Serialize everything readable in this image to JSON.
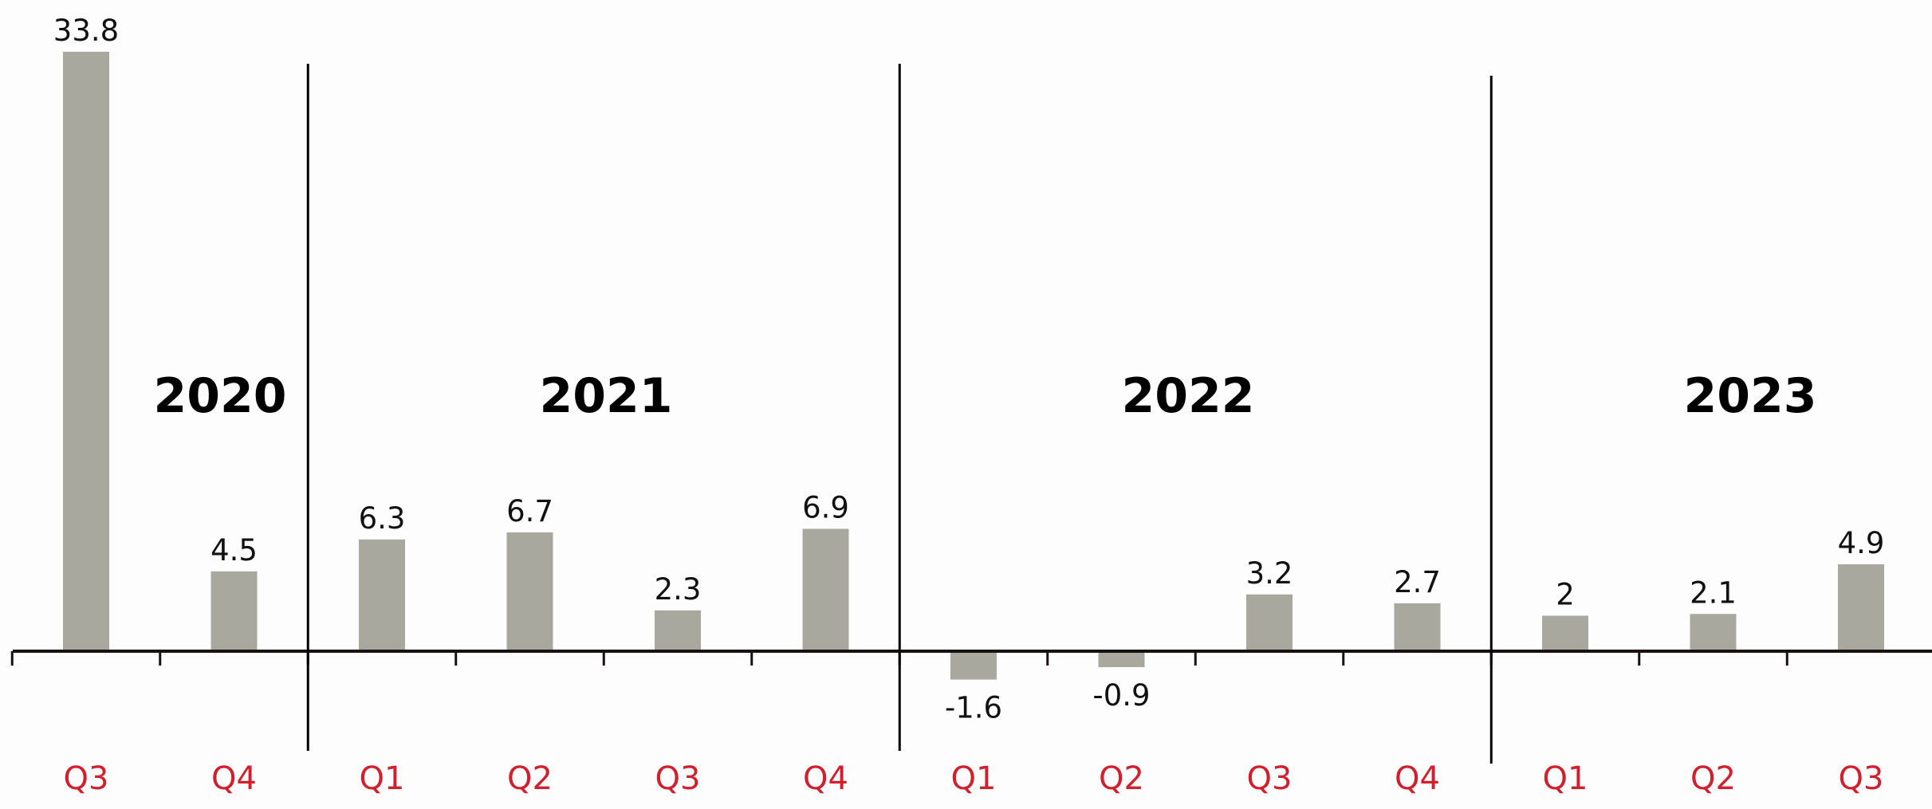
{
  "chart_data": {
    "type": "bar",
    "title": "",
    "xlabel": "",
    "ylabel": "",
    "ylim": [
      -1.6,
      33.8
    ],
    "grid": false,
    "legend": "none",
    "categories": [
      "Q3",
      "Q4",
      "Q1",
      "Q2",
      "Q3",
      "Q4",
      "Q1",
      "Q2",
      "Q3",
      "Q4",
      "Q1",
      "Q2",
      "Q3"
    ],
    "years": [
      {
        "label": "2020",
        "quarters": [
          "Q3",
          "Q4"
        ]
      },
      {
        "label": "2021",
        "quarters": [
          "Q1",
          "Q2",
          "Q3",
          "Q4"
        ]
      },
      {
        "label": "2022",
        "quarters": [
          "Q1",
          "Q2",
          "Q3",
          "Q4"
        ]
      },
      {
        "label": "2023",
        "quarters": [
          "Q1",
          "Q2",
          "Q3"
        ]
      }
    ],
    "values": [
      33.8,
      4.5,
      6.3,
      6.7,
      2.3,
      6.9,
      -1.6,
      -0.9,
      3.2,
      2.7,
      2,
      2.1,
      4.9
    ],
    "value_labels": [
      "33.8",
      "4.5",
      "6.3",
      "6.7",
      "2.3",
      "6.9",
      "-1.6",
      "-0.9",
      "3.2",
      "2.7",
      "2",
      "2.1",
      "4.9"
    ],
    "colors": {
      "bar": "#a8a89f",
      "axis": "#1a1010",
      "quarter_label": "#d0202e",
      "value_label": "#111111",
      "year_label": "#000000",
      "divider": "#000000"
    }
  }
}
